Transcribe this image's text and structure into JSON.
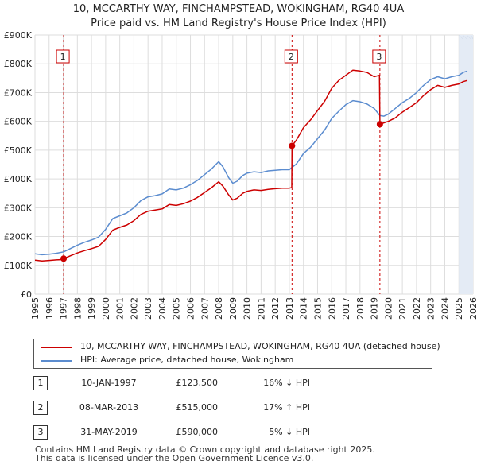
{
  "title_line1": "10, MCCARTHY WAY, FINCHAMPSTEAD, WOKINGHAM, RG40 4UA",
  "title_line2": "Price paid vs. HM Land Registry's House Price Index (HPI)",
  "colors": {
    "red": "#cc0000",
    "blue": "#5b8ccf",
    "grid": "#dddddd",
    "band": "#e4ebf5"
  },
  "chart_data": {
    "type": "line",
    "ylim": [
      0,
      900000
    ],
    "xlim": [
      1995,
      2026
    ],
    "y_ticks": [
      0,
      100000,
      200000,
      300000,
      400000,
      500000,
      600000,
      700000,
      800000,
      900000
    ],
    "y_tick_labels": [
      "£0",
      "£100K",
      "£200K",
      "£300K",
      "£400K",
      "£500K",
      "£600K",
      "£700K",
      "£800K",
      "£900K"
    ],
    "x_ticks": [
      1995,
      1996,
      1997,
      1998,
      1999,
      2000,
      2001,
      2002,
      2003,
      2004,
      2005,
      2006,
      2007,
      2008,
      2009,
      2010,
      2011,
      2012,
      2013,
      2014,
      2015,
      2016,
      2017,
      2018,
      2019,
      2020,
      2021,
      2022,
      2023,
      2024,
      2025,
      2026
    ],
    "x_tick_labels": [
      "1995",
      "1996",
      "1997",
      "1998",
      "1999",
      "2000",
      "2001",
      "2002",
      "2003",
      "2004",
      "2005",
      "2006",
      "2007",
      "2008",
      "2009",
      "2010",
      "2011",
      "2012",
      "2013",
      "2014",
      "2015",
      "2016",
      "2017",
      "2018",
      "2019",
      "2020",
      "2021",
      "2022",
      "2023",
      "2024",
      "2025",
      "2026"
    ],
    "forecast_start": 2025.0,
    "series": [
      {
        "name": "hpi",
        "label": "HPI: Average price, detached house, Wokingham",
        "x": [
          1995.0,
          1995.5,
          1996.0,
          1996.5,
          1997.03,
          1997.5,
          1998.0,
          1998.5,
          1999.0,
          1999.5,
          2000.0,
          2000.5,
          2001.0,
          2001.5,
          2002.0,
          2002.5,
          2003.0,
          2003.5,
          2004.0,
          2004.5,
          2005.0,
          2005.5,
          2006.0,
          2006.5,
          2007.0,
          2007.5,
          2008.0,
          2008.3,
          2008.7,
          2009.0,
          2009.3,
          2009.7,
          2010.0,
          2010.5,
          2011.0,
          2011.5,
          2012.0,
          2012.5,
          2013.0,
          2013.19,
          2013.5,
          2014.0,
          2014.5,
          2015.0,
          2015.5,
          2016.0,
          2016.5,
          2017.0,
          2017.5,
          2018.0,
          2018.5,
          2019.0,
          2019.41,
          2019.7,
          2020.0,
          2020.5,
          2021.0,
          2021.5,
          2022.0,
          2022.5,
          2023.0,
          2023.5,
          2024.0,
          2024.5,
          2025.0,
          2025.3,
          2025.6
        ],
        "y": [
          140000,
          137000,
          139000,
          142000,
          147000,
          158000,
          170000,
          180000,
          188000,
          198000,
          225000,
          262000,
          272000,
          282000,
          300000,
          325000,
          338000,
          342000,
          348000,
          365000,
          362000,
          368000,
          380000,
          395000,
          415000,
          435000,
          460000,
          442000,
          405000,
          385000,
          392000,
          412000,
          420000,
          425000,
          422000,
          428000,
          430000,
          432000,
          432000,
          440000,
          452000,
          488000,
          510000,
          540000,
          570000,
          610000,
          635000,
          658000,
          672000,
          668000,
          660000,
          645000,
          620000,
          618000,
          625000,
          645000,
          665000,
          680000,
          700000,
          725000,
          745000,
          755000,
          748000,
          755000,
          760000,
          770000,
          775000
        ]
      },
      {
        "name": "price_paid",
        "label": "10, MCCARTHY WAY, FINCHAMPSTEAD, WOKINGHAM, RG40 4UA (detached house)",
        "x": [
          1995.0,
          1995.5,
          1996.0,
          1996.5,
          1997.0,
          1997.03,
          1997.5,
          1998.0,
          1998.5,
          1999.0,
          1999.5,
          2000.0,
          2000.5,
          2001.0,
          2001.5,
          2002.0,
          2002.5,
          2003.0,
          2003.5,
          2004.0,
          2004.5,
          2005.0,
          2005.5,
          2006.0,
          2006.5,
          2007.0,
          2007.5,
          2008.0,
          2008.3,
          2008.7,
          2009.0,
          2009.3,
          2009.7,
          2010.0,
          2010.5,
          2011.0,
          2011.5,
          2012.0,
          2012.5,
          2013.0,
          2013.17,
          2013.19,
          2013.5,
          2014.0,
          2014.5,
          2015.0,
          2015.5,
          2016.0,
          2016.5,
          2017.0,
          2017.5,
          2018.0,
          2018.5,
          2019.0,
          2019.38,
          2019.41,
          2019.7,
          2020.0,
          2020.5,
          2021.0,
          2021.5,
          2022.0,
          2022.5,
          2023.0,
          2023.5,
          2024.0,
          2024.5,
          2025.0,
          2025.3,
          2025.6
        ],
        "y": [
          118000,
          115000,
          117000,
          119000,
          120000,
          123500,
          133000,
          143000,
          151000,
          158000,
          166000,
          190000,
          222000,
          232000,
          240000,
          255000,
          277000,
          288000,
          292000,
          296000,
          311000,
          308000,
          314000,
          323000,
          336000,
          353000,
          370000,
          390000,
          375000,
          345000,
          327000,
          333000,
          350000,
          357000,
          362000,
          360000,
          364000,
          366000,
          368000,
          368000,
          370000,
          515000,
          535000,
          578000,
          605000,
          638000,
          670000,
          715000,
          742000,
          760000,
          778000,
          775000,
          770000,
          755000,
          760000,
          590000,
          595000,
          600000,
          612000,
          632000,
          648000,
          665000,
          690000,
          710000,
          725000,
          718000,
          725000,
          730000,
          738000,
          742000
        ]
      }
    ],
    "transactions": [
      {
        "num": "1",
        "x": 1997.03,
        "y": 123500
      },
      {
        "num": "2",
        "x": 2013.19,
        "y": 515000
      },
      {
        "num": "3",
        "x": 2019.41,
        "y": 590000
      }
    ]
  },
  "legend": {
    "red_label": "10, MCCARTHY WAY, FINCHAMPSTEAD, WOKINGHAM, RG40 4UA (detached house)",
    "blue_label": "HPI: Average price, detached house, Wokingham"
  },
  "table": [
    {
      "num": "1",
      "date": "10-JAN-1997",
      "price": "£123,500",
      "hpi": "16% ↓ HPI"
    },
    {
      "num": "2",
      "date": "08-MAR-2013",
      "price": "£515,000",
      "hpi": "17% ↑ HPI"
    },
    {
      "num": "3",
      "date": "31-MAY-2019",
      "price": "£590,000",
      "hpi": "5% ↓ HPI"
    }
  ],
  "footer_line1": "Contains HM Land Registry data © Crown copyright and database right 2025.",
  "footer_line2": "This data is licensed under the Open Government Licence v3.0."
}
